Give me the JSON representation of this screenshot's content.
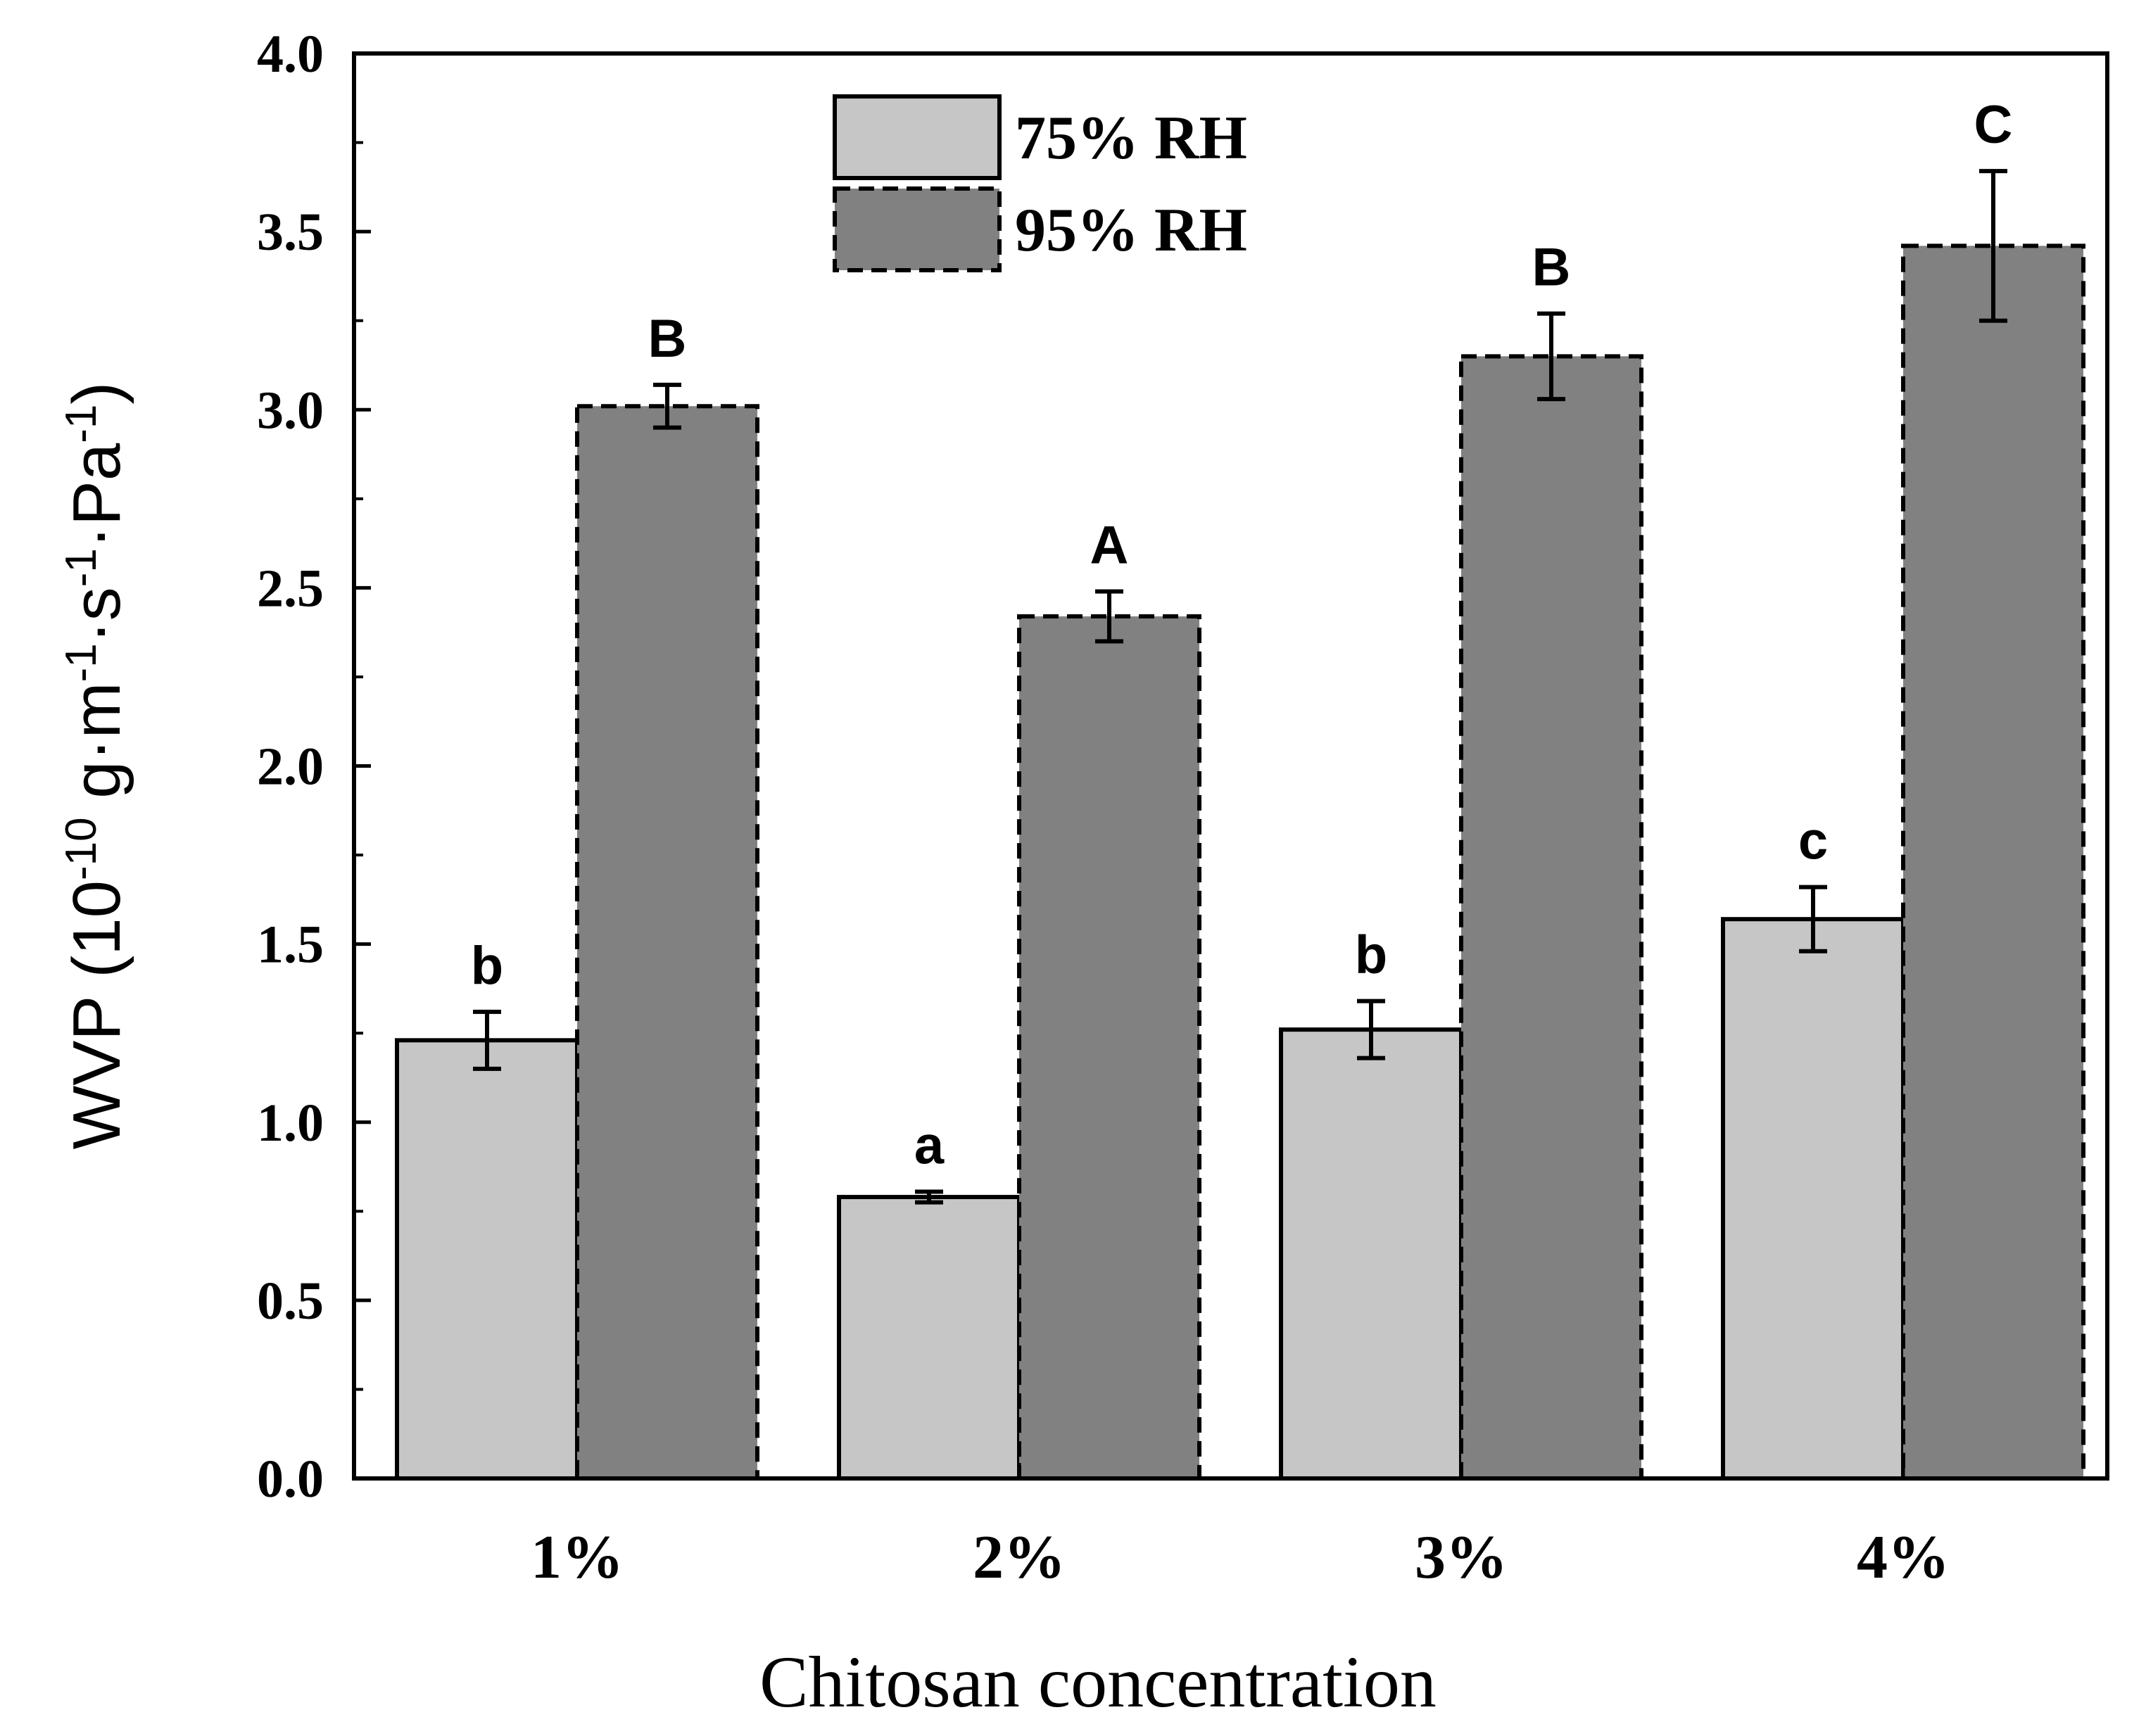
{
  "chart_data": {
    "type": "bar",
    "title": "",
    "xlabel": "Chitosan concentration",
    "ylabel_main": "WVP (10",
    "ylabel_exp": "-10",
    "ylabel_unit": " g·m",
    "ylabel_parts": [
      {
        "text": "WVP (10",
        "sup": false
      },
      {
        "text": "-10",
        "sup": true
      },
      {
        "text": " g·m",
        "sup": false
      },
      {
        "text": "-1",
        "sup": true
      },
      {
        "text": "·s",
        "sup": false
      },
      {
        "text": "-1",
        "sup": true
      },
      {
        "text": "·Pa",
        "sup": false
      },
      {
        "text": "-1",
        "sup": true
      },
      {
        "text": ")",
        "sup": false
      }
    ],
    "categories": [
      "1%",
      "2%",
      "3%",
      "4%"
    ],
    "ylim": [
      0.0,
      4.0
    ],
    "yticks": [
      "0.0",
      "0.5",
      "1.0",
      "1.5",
      "2.0",
      "2.5",
      "3.0",
      "3.5",
      "4.0"
    ],
    "legend_position": "top-center",
    "series": [
      {
        "name": "75% RH",
        "color": "#c6c6c6",
        "line_style": "solid",
        "values": [
          1.23,
          0.79,
          1.26,
          1.57
        ],
        "errors": [
          0.08,
          0.015,
          0.08,
          0.09
        ],
        "letters": [
          "b",
          "a",
          "b",
          "c"
        ]
      },
      {
        "name": "95% RH",
        "color": "#818181",
        "line_style": "dashed",
        "values": [
          3.01,
          2.42,
          3.15,
          3.46
        ],
        "errors": [
          0.06,
          0.07,
          0.12,
          0.21
        ],
        "letters": [
          "B",
          "A",
          "B",
          "C"
        ]
      }
    ]
  }
}
